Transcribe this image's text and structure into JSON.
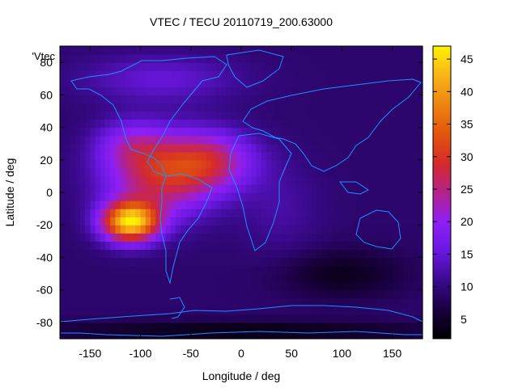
{
  "chart_data": {
    "type": "heatmap",
    "title": "VTEC / TECU 20110719_200.63000",
    "xlabel": "Longitude / deg",
    "ylabel": "Latitude / deg",
    "series_label": "'Vtec",
    "xlim": [
      -180,
      180
    ],
    "ylim": [
      -90,
      90
    ],
    "x_ticks": [
      -150,
      -100,
      -50,
      0,
      50,
      100,
      150
    ],
    "y_ticks": [
      -80,
      -60,
      -40,
      -20,
      0,
      20,
      40,
      60,
      80
    ],
    "colorbar": {
      "range": [
        2,
        47
      ],
      "ticks": [
        5,
        10,
        15,
        20,
        25,
        30,
        35,
        40,
        45
      ],
      "colors": [
        "#000000",
        "#1a0040",
        "#3b0a8f",
        "#6a18e0",
        "#8e1ff5",
        "#b4228a",
        "#d42a2a",
        "#e2560c",
        "#ee8410",
        "#f8b418",
        "#fff200"
      ]
    },
    "field": {
      "background": 9,
      "features": [
        {
          "lon": -110,
          "lat": -18,
          "sigma_lon": 28,
          "sigma_lat": 12,
          "amp": 35
        },
        {
          "lon": -80,
          "lat": 10,
          "sigma_lon": 55,
          "sigma_lat": 25,
          "amp": 18
        },
        {
          "lon": -30,
          "lat": 20,
          "sigma_lon": 45,
          "sigma_lat": 18,
          "amp": 14
        },
        {
          "lon": -110,
          "lat": 30,
          "sigma_lon": 35,
          "sigma_lat": 15,
          "amp": 8
        },
        {
          "lon": -80,
          "lat": 70,
          "sigma_lon": 80,
          "sigma_lat": 15,
          "amp": 6
        },
        {
          "lon": 40,
          "lat": -10,
          "sigma_lon": 40,
          "sigma_lat": 30,
          "amp": 3
        },
        {
          "lon": 100,
          "lat": -50,
          "sigma_lon": 60,
          "sigma_lat": 15,
          "amp": -5
        },
        {
          "lon": 0,
          "lat": -85,
          "sigma_lon": 200,
          "sigma_lat": 6,
          "amp": -6
        }
      ]
    }
  }
}
